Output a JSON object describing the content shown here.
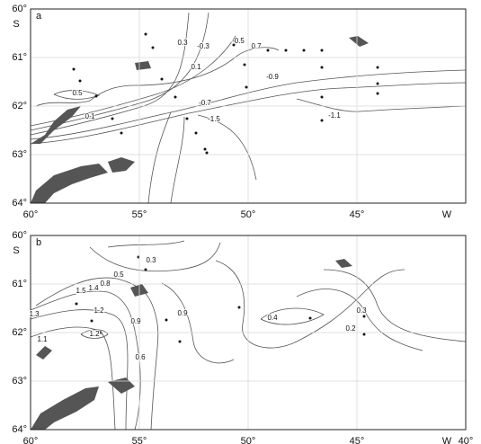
{
  "panels": [
    {
      "label": "a",
      "lat_ticks": [
        {
          "value": 60,
          "label": "60°"
        },
        {
          "value": 61,
          "label": "61°"
        },
        {
          "value": 62,
          "label": "62°"
        },
        {
          "value": 63,
          "label": "63°"
        },
        {
          "value": 64,
          "label": "64°"
        }
      ],
      "lon_ticks": [
        {
          "value": 60,
          "label": "60°"
        },
        {
          "value": 55,
          "label": "55°"
        },
        {
          "value": 50,
          "label": "50°"
        },
        {
          "value": 45,
          "label": "45°"
        }
      ],
      "lat_hemisphere": "S",
      "lon_hemisphere": "W",
      "contour_labels": [
        "0.3",
        "-0.3",
        "-0.5",
        "0.7",
        "0.1",
        "0.5",
        "-0.9",
        "-0.7",
        "0.1",
        "-1.5",
        "-1.1"
      ]
    },
    {
      "label": "b",
      "lat_ticks": [
        {
          "value": 60,
          "label": "60°"
        },
        {
          "value": 61,
          "label": "61°"
        },
        {
          "value": 62,
          "label": "62°"
        },
        {
          "value": 63,
          "label": "63°"
        },
        {
          "value": 64,
          "label": "64°"
        }
      ],
      "lon_ticks": [
        {
          "value": 60,
          "label": "60°"
        },
        {
          "value": 55,
          "label": "55°"
        },
        {
          "value": 50,
          "label": "50°"
        },
        {
          "value": 45,
          "label": "45°"
        },
        {
          "value": 40,
          "label": "40°"
        }
      ],
      "lat_hemisphere": "S",
      "lon_hemisphere": "W",
      "contour_labels": [
        "0.3",
        "0.5",
        "0.8",
        "1.5",
        "1.4",
        "1.3",
        "1.2",
        "1.1",
        "1.2",
        "0.9",
        "0.9",
        "0.6",
        "0.4",
        "0.3",
        "0.2"
      ]
    }
  ]
}
